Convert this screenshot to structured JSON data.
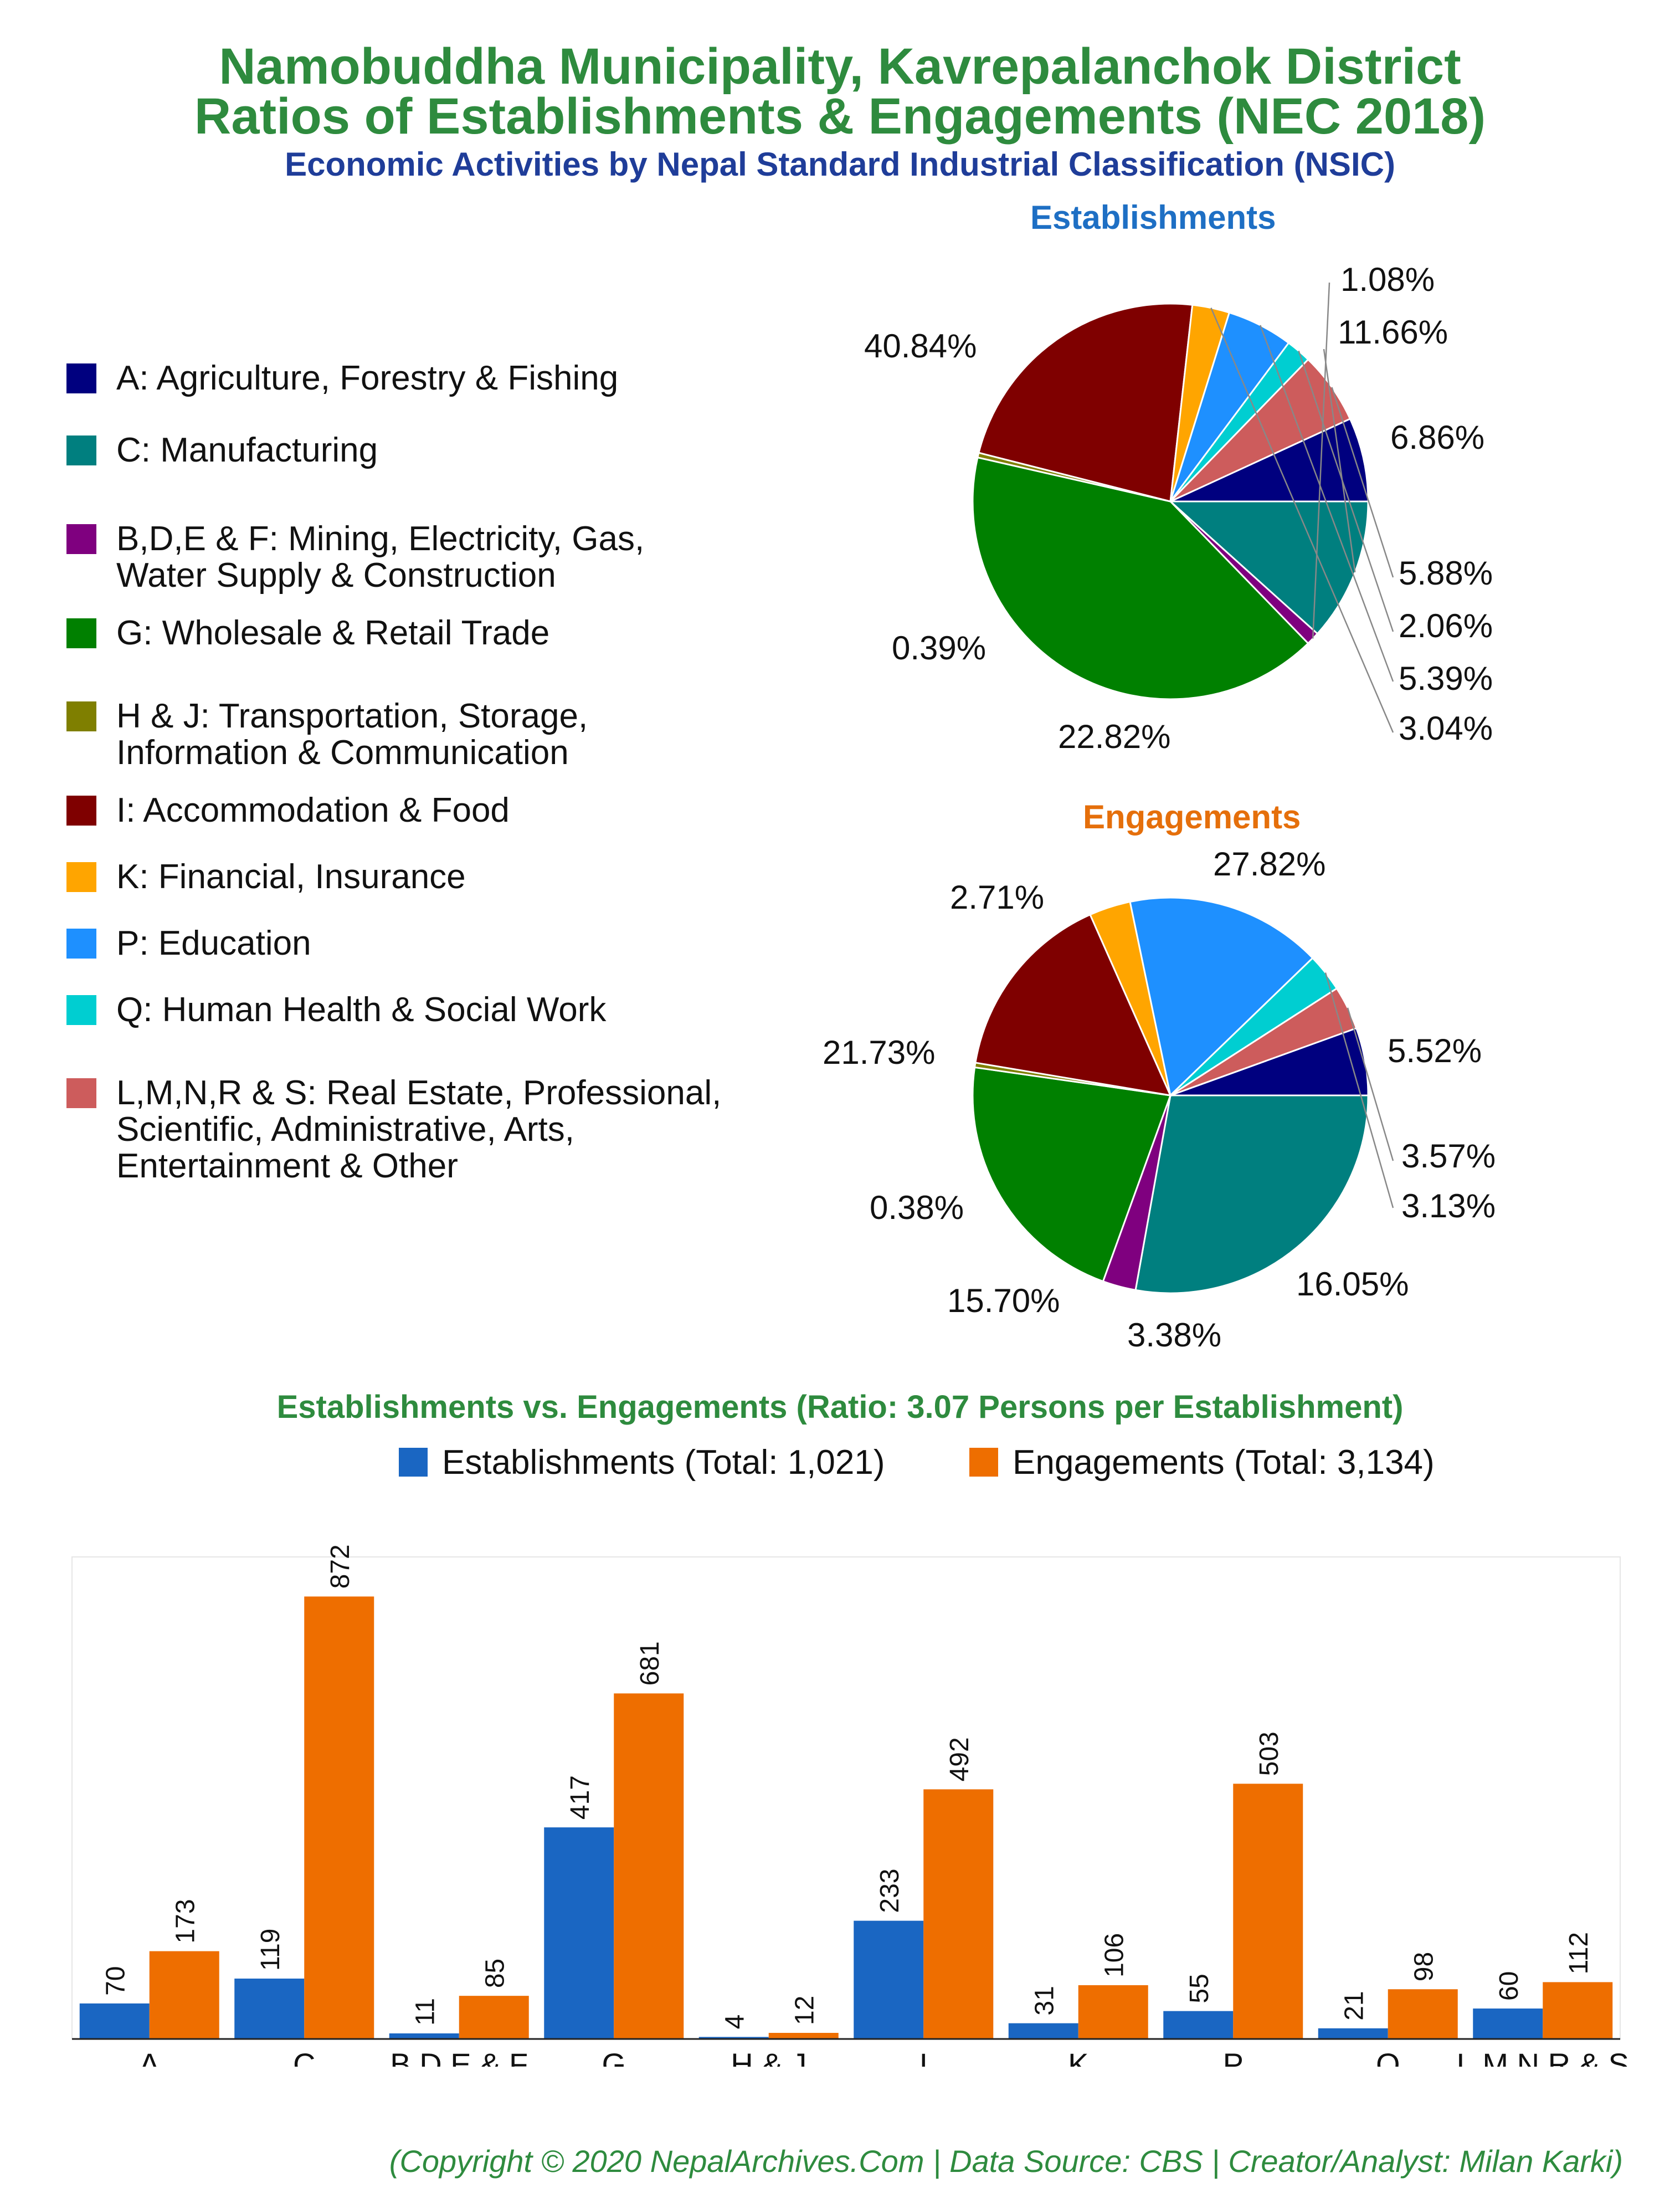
{
  "titles": {
    "line1": "Namobuddha Municipality, Kavrepalanchok District",
    "line2": "Ratios of Establishments & Engagements (NEC 2018)",
    "line3": "Economic Activities by Nepal Standard Industrial Classification (NSIC)"
  },
  "colors": {
    "title_green": "#2e8b3e",
    "subtitle_blue": "#1f3d99",
    "establishments": "#1a66c2",
    "engagements": "#ee6e00"
  },
  "legend": [
    {
      "code": "A",
      "label": "A: Agriculture, Forestry & Fishing",
      "color": "#00007f"
    },
    {
      "code": "C",
      "label": "C: Manufacturing",
      "color": "#007f7f"
    },
    {
      "code": "BDEF",
      "label": "B,D,E & F: Mining, Electricity, Gas,\nWater Supply & Construction",
      "color": "#7f007f"
    },
    {
      "code": "G",
      "label": "G: Wholesale & Retail Trade",
      "color": "#008000"
    },
    {
      "code": "HJ",
      "label": "H & J: Transportation, Storage,\nInformation & Communication",
      "color": "#7f7f00"
    },
    {
      "code": "I",
      "label": "I: Accommodation & Food",
      "color": "#7f0000"
    },
    {
      "code": "K",
      "label": "K: Financial, Insurance",
      "color": "#ffa500"
    },
    {
      "code": "P",
      "label": "P: Education",
      "color": "#1e90ff"
    },
    {
      "code": "Q",
      "label": "Q: Human Health & Social Work",
      "color": "#00ced1"
    },
    {
      "code": "LMNRS",
      "label": "L,M,N,R & S: Real Estate, Professional,\nScientific, Administrative, Arts,\nEntertainment & Other",
      "color": "#cd5c5c"
    }
  ],
  "chart_data": [
    {
      "type": "pie",
      "title": "Establishments",
      "labels": [
        "A",
        "C",
        "B,D,E & F",
        "G",
        "H & J",
        "I",
        "K",
        "P",
        "Q",
        "L,M,N,R & S"
      ],
      "values": [
        6.86,
        11.66,
        1.08,
        40.84,
        0.39,
        22.82,
        3.04,
        5.39,
        2.06,
        5.88
      ],
      "value_labels": [
        "6.86%",
        "11.66%",
        "1.08%",
        "40.84%",
        "0.39%",
        "22.82%",
        "3.04%",
        "5.39%",
        "2.06%",
        "5.88%"
      ]
    },
    {
      "type": "pie",
      "title": "Engagements",
      "labels": [
        "A",
        "C",
        "B,D,E & F",
        "G",
        "H & J",
        "I",
        "K",
        "P",
        "Q",
        "L,M,N,R & S"
      ],
      "values": [
        5.52,
        27.82,
        2.71,
        21.73,
        0.38,
        15.7,
        3.38,
        16.05,
        3.13,
        3.57
      ],
      "value_labels": [
        "5.52%",
        "27.82%",
        "2.71%",
        "21.73%",
        "0.38%",
        "15.70%",
        "3.38%",
        "16.05%",
        "3.13%",
        "3.57%"
      ]
    },
    {
      "type": "bar",
      "title": "Establishments vs. Engagements (Ratio: 3.07 Persons per Establishment)",
      "categories": [
        "A",
        "C",
        "B,D,E & F",
        "G",
        "H & J",
        "I",
        "K",
        "P",
        "Q",
        "L,M,N,R & S"
      ],
      "series": [
        {
          "name": "Establishments (Total: 1,021)",
          "values": [
            70,
            119,
            11,
            417,
            4,
            233,
            31,
            55,
            21,
            60
          ]
        },
        {
          "name": "Engagements (Total: 3,134)",
          "values": [
            173,
            872,
            85,
            681,
            12,
            492,
            106,
            503,
            98,
            112
          ]
        }
      ],
      "ylim": [
        0,
        950
      ],
      "grid": false,
      "legend_position": "top"
    }
  ],
  "copyright": "(Copyright © 2020 NepalArchives.Com | Data Source: CBS | Creator/Analyst: Milan Karki)"
}
